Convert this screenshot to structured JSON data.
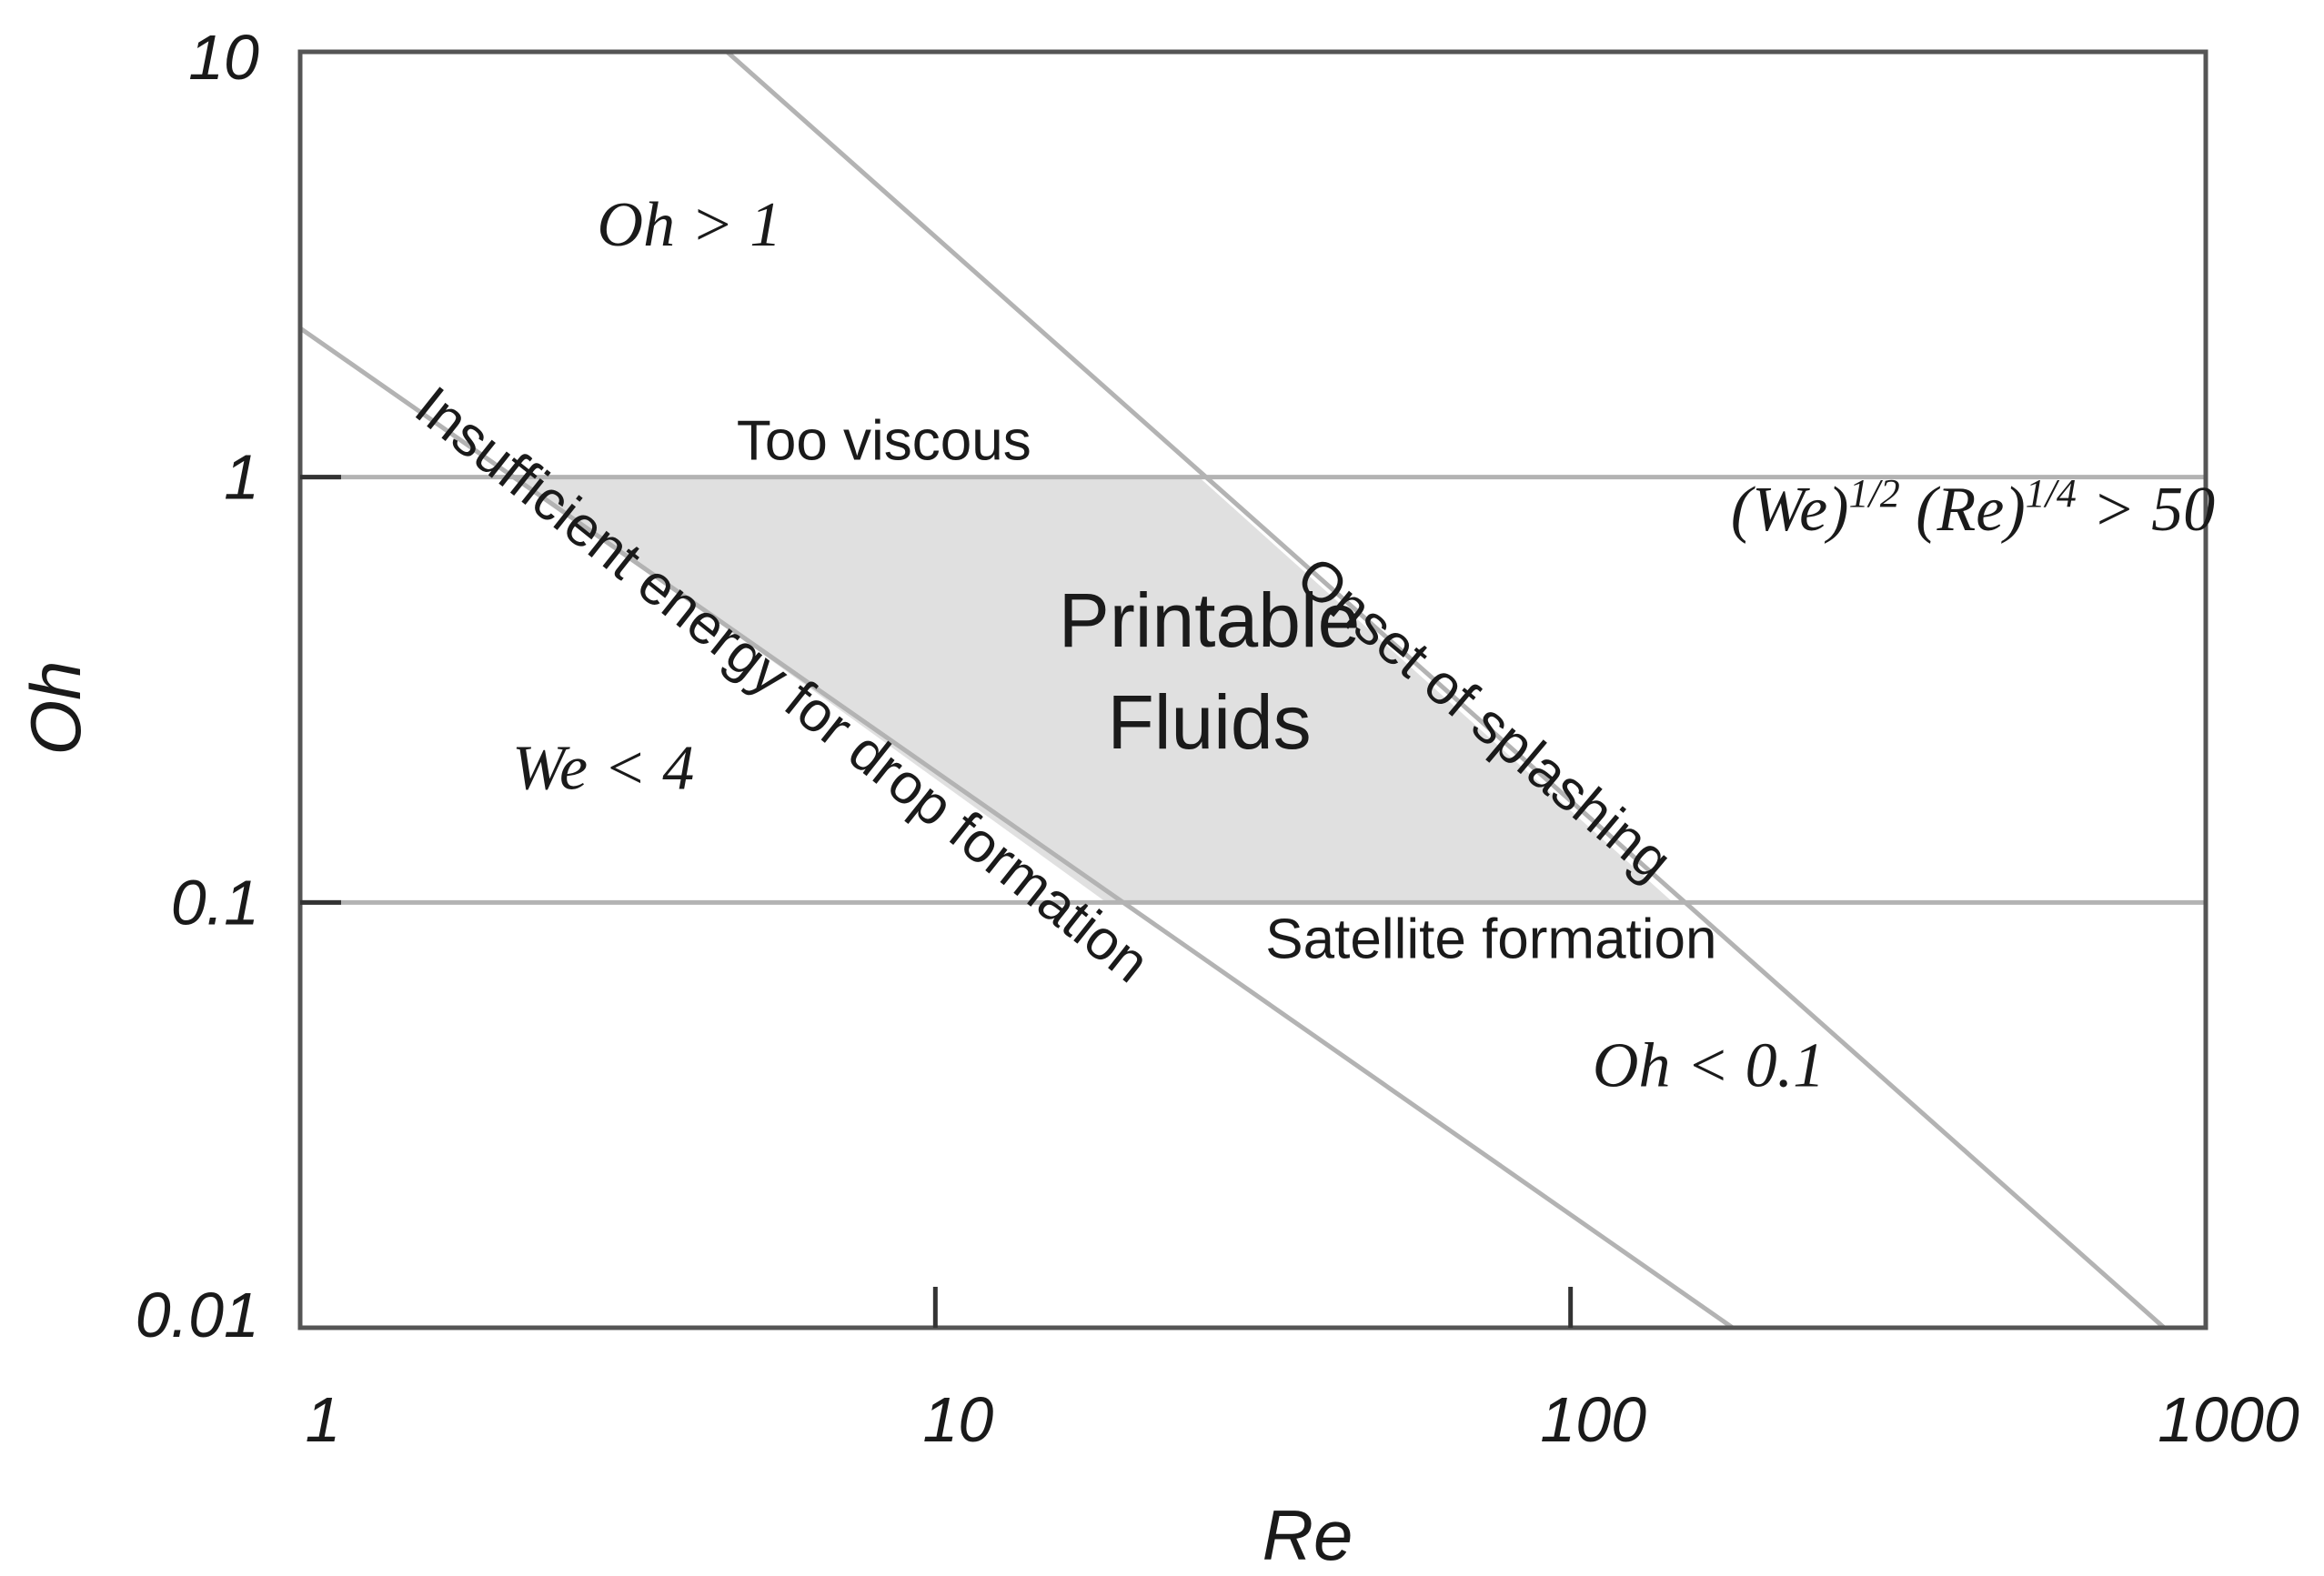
{
  "chart_data": {
    "type": "line",
    "xlabel": "Re",
    "ylabel": "Oh",
    "x_scale": "log",
    "y_scale": "log",
    "xlim": [
      1,
      1000
    ],
    "ylim": [
      0.01,
      10
    ],
    "x_ticks": [
      {
        "value": 1,
        "label": "1"
      },
      {
        "value": 10,
        "label": "10"
      },
      {
        "value": 100,
        "label": "100"
      },
      {
        "value": 1000,
        "label": "1000"
      }
    ],
    "y_ticks": [
      {
        "value": 10,
        "label": "10"
      },
      {
        "value": 1,
        "label": "1"
      },
      {
        "value": 0.1,
        "label": "0.1"
      },
      {
        "value": 0.01,
        "label": "0.01"
      }
    ],
    "grid": false,
    "line_color": "#b3b3b3",
    "region_color": "#e0e0e0",
    "series": [
      {
        "name": "Insufficient energy for drop formation",
        "x": [
          1,
          180
        ],
        "y": [
          2.24,
          0.01
        ]
      },
      {
        "name": "Onset of splashing",
        "x": [
          4.7,
          860
        ],
        "y": [
          10,
          0.01
        ]
      },
      {
        "name": "",
        "x": [
          1,
          1000
        ],
        "y": [
          1,
          1
        ]
      },
      {
        "name": "",
        "x": [
          1,
          1000
        ],
        "y": [
          0.1,
          0.1
        ]
      }
    ],
    "shaded_region": {
      "name": "Printable Fluids",
      "polygon": [
        [
          2.2,
          1
        ],
        [
          26,
          1
        ],
        [
          145,
          0.1
        ],
        [
          18.6,
          0.1
        ]
      ]
    },
    "annotations": [
      {
        "text": "Oh > 1",
        "x": 4.1,
        "y": 3.5,
        "style": "eq"
      },
      {
        "text": "Too viscous",
        "x": 8.3,
        "y": 1.1,
        "style": "region"
      },
      {
        "text": "(We)^1/2 (Re)^1/4 > 50",
        "x": 430,
        "y": 0.75,
        "style": "eq"
      },
      {
        "text": "Printable",
        "x": 27,
        "y": 0.4,
        "style": "big"
      },
      {
        "text": "Fluids",
        "x": 27,
        "y": 0.23,
        "style": "big"
      },
      {
        "text": "We < 4",
        "x": 3.0,
        "y": 0.185,
        "style": "eq"
      },
      {
        "text": "Satellite formation",
        "x": 75,
        "y": 0.074,
        "style": "region"
      },
      {
        "text": "Oh < 0.1",
        "x": 165,
        "y": 0.037,
        "style": "eq"
      },
      {
        "text": "Insufficient energy for drop formation",
        "x": 5.5,
        "y": 0.3,
        "angle": 38.5,
        "style": "region"
      },
      {
        "text": "Onset of splashing",
        "x": 70,
        "y": 0.25,
        "angle": 40,
        "style": "region"
      }
    ]
  }
}
